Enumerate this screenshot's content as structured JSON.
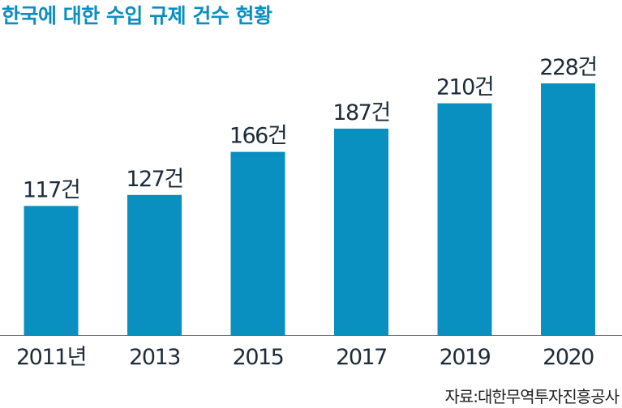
{
  "colors": {
    "title": "#0a8fc1",
    "bar": "#0a8fc1",
    "label": "#1c2b3a",
    "baseline": "#6e6e6e"
  },
  "chart_data": {
    "type": "bar",
    "title": "한국에 대한 수입 규제 건수 현황",
    "xlabel": "",
    "ylabel": "",
    "categories": [
      "2011년",
      "2013",
      "2015",
      "2017",
      "2019",
      "2020"
    ],
    "values": [
      117,
      127,
      166,
      187,
      210,
      228
    ],
    "data_labels": [
      "117건",
      "127건",
      "166건",
      "187건",
      "210건",
      "228건"
    ],
    "ylim": [
      0,
      228
    ],
    "grid": false,
    "legend": "none"
  },
  "source": "자료:대한무역투자진흥공사"
}
